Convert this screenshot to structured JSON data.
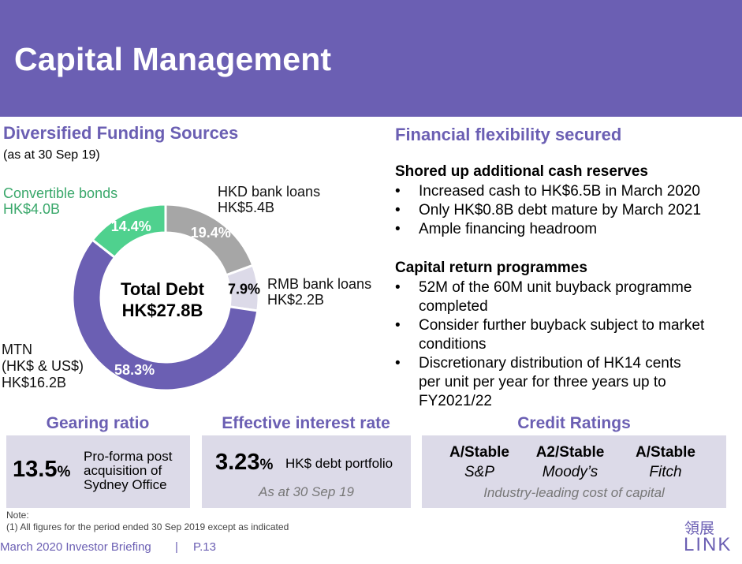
{
  "header": {
    "title": "Capital Management"
  },
  "left": {
    "title": "Diversified Funding Sources",
    "subtitle": "(as at 30 Sep 19)",
    "center_line1": "Total Debt",
    "center_line2": "HK$27.8B"
  },
  "chart_data": {
    "type": "pie",
    "slices": [
      {
        "name": "HKD bank loans",
        "value_text": "HK$5.4B",
        "percent": 19.4,
        "label": "19.4%",
        "color": "#a6a6a6"
      },
      {
        "name": "RMB bank loans",
        "value_text": "HK$2.2B",
        "percent": 7.9,
        "label": "7.9%",
        "color": "#dcdae8"
      },
      {
        "name": "MTN",
        "name_line2": "(HK$ & US$)",
        "value_text": "HK$16.2B",
        "percent": 58.3,
        "label": "58.3%",
        "color": "#6b5fb3"
      },
      {
        "name": "Convertible bonds",
        "value_text": "HK$4.0B",
        "percent": 14.4,
        "label": "14.4%",
        "color": "#4fd18e"
      }
    ]
  },
  "right": {
    "title": "Financial flexibility secured",
    "groups": [
      {
        "heading": "Shored up additional cash reserves",
        "items": [
          [
            "Increased cash to HK$6.5B in March 2020"
          ],
          [
            "Only HK$0.8B debt mature by March 2021"
          ],
          [
            "Ample financing headroom"
          ]
        ]
      },
      {
        "heading": "Capital return programmes",
        "items": [
          [
            "52M of the 60M unit buyback programme",
            "completed"
          ],
          [
            "Consider further buyback subject to market",
            "conditions"
          ],
          [
            "Discretionary distribution of HK14 cents",
            "per unit per year for three years up to",
            "FY2021/22"
          ]
        ]
      }
    ],
    "bullet": "•"
  },
  "gearing": {
    "title": "Gearing ratio",
    "value": "13.5",
    "unit": "%",
    "desc1": "Pro-forma post",
    "desc2": "acquisition of",
    "desc3": "Sydney Office"
  },
  "interest": {
    "title": "Effective interest rate",
    "value": "3.23",
    "unit": "%",
    "desc": "HK$ debt portfolio",
    "sub": "As at 30 Sep 19"
  },
  "credit": {
    "title": "Credit Ratings",
    "ratings": [
      {
        "rating": "A/Stable",
        "agency": "S&P"
      },
      {
        "rating": "A2/Stable",
        "agency": "Moody’s"
      },
      {
        "rating": "A/Stable",
        "agency": "Fitch"
      }
    ],
    "tagline": "Industry-leading cost of capital"
  },
  "note": {
    "label": "Note:",
    "text": "(1)  All figures for the period ended 30 Sep 2019 except as indicated"
  },
  "footer": {
    "briefing": "March 2020  Investor Briefing",
    "separator": "|",
    "page": "P.13"
  },
  "logo": {
    "chinese": "領展",
    "english": "LINK"
  }
}
